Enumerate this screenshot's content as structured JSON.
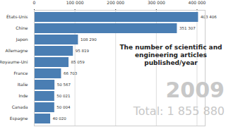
{
  "chart_data": {
    "type": "bar",
    "orientation": "horizontal",
    "title": "The number of scientific and engineering articles published/year",
    "annotations": [
      "2009",
      "Total: 1 855 880"
    ],
    "categories": [
      "États-Unis",
      "Chine",
      "Japon",
      "Allemagne",
      "Royaume-Uni",
      "France",
      "Italie",
      "Inde",
      "Canada",
      "Espagne"
    ],
    "values": [
      403406,
      351307,
      108290,
      95819,
      85059,
      66703,
      50567,
      50021,
      50004,
      40020
    ],
    "value_labels": [
      "403 406",
      "351 307",
      "108 290",
      "95 819",
      "85 059",
      "66 703",
      "50 567",
      "50 021",
      "50 004",
      "40 020"
    ],
    "color": "#4a7eb3",
    "xlim": [
      0,
      420000
    ],
    "xticks": [
      0,
      {
        "value": 100000,
        "label": "100 000"
      },
      {
        "value": 200000,
        "label": "200 000"
      },
      {
        "value": 300000,
        "label": "300 000"
      },
      {
        "value": 400000,
        "label": "400 000"
      }
    ],
    "grid": true,
    "data_labels": true
  }
}
